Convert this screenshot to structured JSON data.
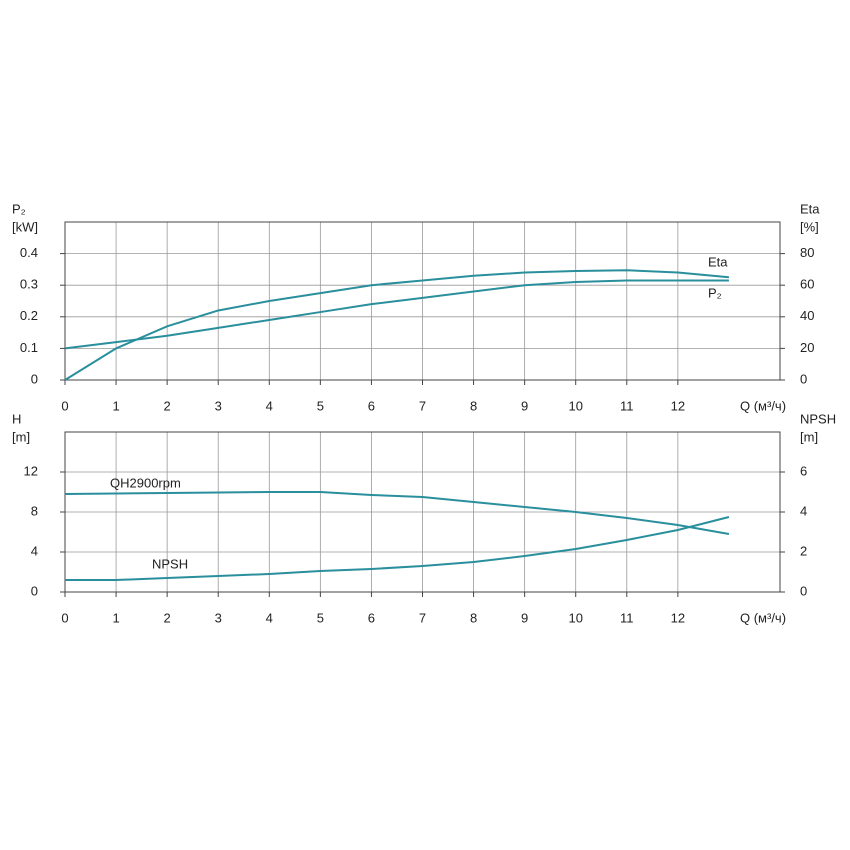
{
  "chart_data": [
    {
      "type": "line",
      "x_label": "Q (м³/ч)",
      "y_label": "P₂",
      "y_unit": "[kW]",
      "y2_label": "Eta",
      "y2_unit": "[%]",
      "x": [
        0,
        1,
        2,
        3,
        4,
        5,
        6,
        7,
        8,
        9,
        10,
        11,
        12,
        13
      ],
      "xlim": [
        0,
        14
      ],
      "xticks": [
        0,
        1,
        2,
        3,
        4,
        5,
        6,
        7,
        8,
        9,
        10,
        11,
        12
      ],
      "ylim": [
        0,
        0.5
      ],
      "yticks": [
        0,
        0.1,
        0.2,
        0.3,
        0.4
      ],
      "y2lim": [
        0,
        100
      ],
      "y2ticks": [
        0,
        20,
        40,
        60,
        80
      ],
      "grid": true,
      "series": [
        {
          "name": "Eta",
          "color": "#2a8f9d",
          "axis": "y2",
          "values": [
            0,
            20,
            34,
            44,
            50,
            55,
            60,
            63,
            66,
            68,
            69,
            69.5,
            68,
            65
          ]
        },
        {
          "name": "P₂",
          "color": "#2a8f9d",
          "values": [
            0.1,
            0.12,
            0.14,
            0.165,
            0.19,
            0.215,
            0.24,
            0.26,
            0.28,
            0.3,
            0.31,
            0.315,
            0.315,
            0.315
          ]
        }
      ]
    },
    {
      "type": "line",
      "x_label": "Q (м³/ч)",
      "y_label": "H",
      "y_unit": "[m]",
      "y2_label": "NPSH",
      "y2_unit": "[m]",
      "x": [
        0,
        1,
        2,
        3,
        4,
        5,
        6,
        7,
        8,
        9,
        10,
        11,
        12,
        13
      ],
      "xlim": [
        0,
        14
      ],
      "xticks": [
        0,
        1,
        2,
        3,
        4,
        5,
        6,
        7,
        8,
        9,
        10,
        11,
        12
      ],
      "ylim": [
        0,
        16
      ],
      "yticks": [
        0,
        4,
        8,
        12
      ],
      "y2lim": [
        0,
        8
      ],
      "y2ticks": [
        0,
        2,
        4,
        6
      ],
      "grid": true,
      "series": [
        {
          "name": "QH2900rpm",
          "color": "#2a8f9d",
          "values": [
            9.8,
            9.85,
            9.9,
            9.95,
            10,
            10,
            9.7,
            9.5,
            9.0,
            8.5,
            8.0,
            7.4,
            6.7,
            5.8
          ]
        },
        {
          "name": "NPSH",
          "color": "#2a8f9d",
          "axis": "y2",
          "values": [
            0.6,
            0.6,
            0.7,
            0.8,
            0.9,
            1.05,
            1.15,
            1.3,
            1.5,
            1.8,
            2.15,
            2.6,
            3.1,
            3.75
          ]
        }
      ]
    }
  ]
}
